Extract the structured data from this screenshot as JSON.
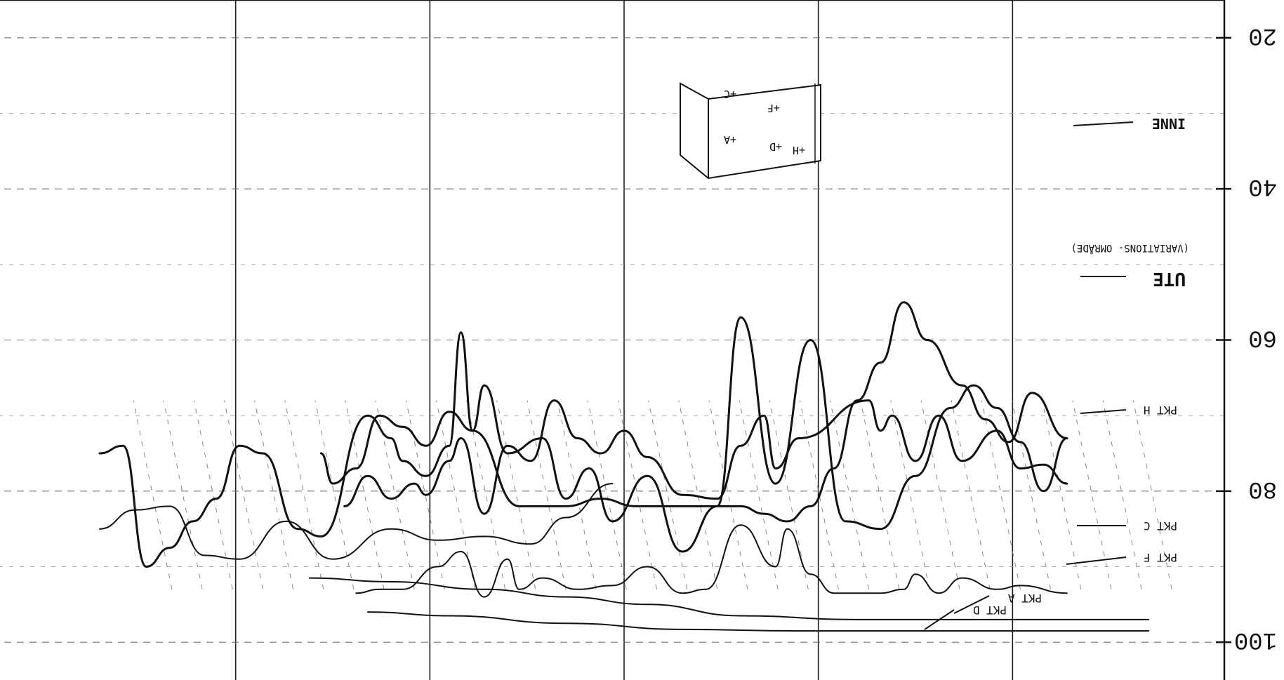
{
  "chart_data": {
    "type": "line",
    "orientation": "rotated-180",
    "y_axis": {
      "ticks": [
        {
          "label": "20",
          "value": 20
        },
        {
          "label": "40",
          "value": 40
        },
        {
          "label": "60",
          "value": 60
        },
        {
          "label": "80",
          "value": 80
        },
        {
          "label": "100",
          "value": 100
        }
      ],
      "ylim": [
        15,
        105
      ]
    },
    "x_range": [
      0,
      100
    ],
    "grid": true,
    "series": [
      {
        "name": "INNE",
        "label": "INNE",
        "style": "thin",
        "points": [
          [
            51,
            79
          ],
          [
            55,
            83.5
          ],
          [
            58,
            87
          ],
          [
            62,
            86
          ],
          [
            66,
            86.5
          ],
          [
            70,
            85
          ],
          [
            75,
            89
          ],
          [
            79,
            84
          ],
          [
            83,
            89
          ],
          [
            86,
            88.5
          ],
          [
            89,
            82
          ],
          [
            92,
            82.5
          ],
          [
            95,
            85
          ]
        ]
      },
      {
        "name": "UTE (VARIATIONS- OMRÅDE)",
        "label": "UTE",
        "note": "(VARIATIONS- OMRÅDE)",
        "style": "bold",
        "points": [
          [
            12,
            73
          ],
          [
            14,
            80
          ],
          [
            16,
            73.5
          ],
          [
            18,
            69
          ],
          [
            20,
            66
          ],
          [
            22,
            69
          ],
          [
            25,
            78
          ],
          [
            28,
            85
          ],
          [
            31,
            84
          ],
          [
            34,
            60
          ],
          [
            37,
            79
          ],
          [
            40,
            57
          ],
          [
            42,
            82
          ],
          [
            45,
            88
          ],
          [
            48,
            78
          ],
          [
            51,
            84
          ],
          [
            53,
            77
          ],
          [
            55,
            81
          ],
          [
            57,
            73
          ],
          [
            60,
            75
          ],
          [
            62,
            66
          ],
          [
            63,
            72
          ],
          [
            64,
            59
          ],
          [
            65,
            74
          ],
          [
            67,
            78
          ],
          [
            69,
            76
          ],
          [
            70,
            73
          ],
          [
            72,
            70
          ],
          [
            76,
            86
          ],
          [
            78,
            85
          ],
          [
            81,
            75
          ],
          [
            83,
            74
          ],
          [
            85,
            81
          ],
          [
            87,
            84
          ],
          [
            89,
            87.5
          ],
          [
            91,
            90
          ],
          [
            93,
            74
          ],
          [
            95,
            75
          ]
        ]
      },
      {
        "name": "PKT H",
        "label": "PKT H",
        "style": "bold",
        "points": [
          [
            12,
            79
          ],
          [
            14,
            76.5
          ],
          [
            16,
            77
          ],
          [
            18,
            72
          ],
          [
            21,
            76
          ],
          [
            23,
            70
          ],
          [
            25,
            76
          ],
          [
            27,
            70
          ],
          [
            28,
            72
          ],
          [
            29,
            68
          ],
          [
            35,
            73
          ],
          [
            37,
            77
          ],
          [
            38,
            70
          ],
          [
            40,
            74
          ],
          [
            42,
            81
          ],
          [
            45,
            80.5
          ],
          [
            48,
            75.5
          ],
          [
            50,
            72
          ],
          [
            52,
            75
          ],
          [
            54,
            73
          ],
          [
            56,
            68
          ],
          [
            58,
            76
          ],
          [
            60,
            74
          ],
          [
            62,
            83
          ],
          [
            64,
            73
          ],
          [
            65,
            76
          ],
          [
            67,
            80.5
          ],
          [
            68,
            79
          ],
          [
            70,
            81
          ],
          [
            72,
            78
          ],
          [
            74,
            82
          ]
        ]
      },
      {
        "name": "PKT C",
        "label": "PKT C",
        "style": "bold",
        "points": [
          [
            12,
            73
          ],
          [
            15,
            67
          ],
          [
            17,
            73.5
          ],
          [
            19,
            70.5
          ],
          [
            21,
            66
          ],
          [
            24,
            60
          ],
          [
            26,
            55
          ],
          [
            28,
            63
          ],
          [
            30,
            68
          ],
          [
            32,
            77
          ],
          [
            34,
            82
          ],
          [
            36,
            84
          ],
          [
            38,
            83
          ],
          [
            40,
            82
          ],
          [
            43,
            82
          ],
          [
            46,
            82
          ],
          [
            49,
            82
          ],
          [
            52,
            81
          ],
          [
            55,
            82
          ],
          [
            57,
            82
          ],
          [
            59,
            82
          ],
          [
            63,
            72
          ],
          [
            65,
            69.5
          ],
          [
            67,
            74
          ],
          [
            69,
            71.5
          ],
          [
            71,
            70
          ],
          [
            73,
            77
          ],
          [
            75,
            79
          ],
          [
            76,
            75
          ]
        ]
      },
      {
        "name": "PKT F",
        "label": "PKT F",
        "style": "thin",
        "points": [
          [
            12,
            93.5
          ],
          [
            16,
            92.5
          ],
          [
            18,
            93
          ],
          [
            21,
            91.5
          ],
          [
            23,
            93.5
          ],
          [
            25,
            91
          ],
          [
            26,
            93
          ],
          [
            28,
            93.5
          ],
          [
            32,
            93.5
          ],
          [
            34,
            91
          ],
          [
            36,
            85
          ],
          [
            37,
            90
          ],
          [
            40,
            84.5
          ],
          [
            43,
            93
          ],
          [
            45,
            93.5
          ],
          [
            48,
            90
          ],
          [
            51,
            92.5
          ],
          [
            54,
            93
          ],
          [
            57,
            91.5
          ],
          [
            59,
            93
          ],
          [
            60,
            89
          ],
          [
            62,
            94
          ],
          [
            64,
            88
          ],
          [
            66,
            90
          ],
          [
            69,
            93
          ],
          [
            71,
            93
          ],
          [
            73,
            93.5
          ]
        ]
      },
      {
        "name": "PKT A",
        "label": "PKT A",
        "style": "thin",
        "points": [
          [
            5,
            97
          ],
          [
            10,
            97
          ],
          [
            20,
            97
          ],
          [
            30,
            97
          ],
          [
            40,
            96.5
          ],
          [
            48,
            95
          ],
          [
            55,
            94
          ],
          [
            62,
            93
          ],
          [
            70,
            92
          ],
          [
            77,
            91.5
          ]
        ]
      },
      {
        "name": "PKT D",
        "label": "PKT D",
        "style": "thin",
        "points": [
          [
            5,
            98.5
          ],
          [
            20,
            98.5
          ],
          [
            35,
            98.5
          ],
          [
            45,
            98.3
          ],
          [
            55,
            97.5
          ],
          [
            65,
            96.5
          ],
          [
            72,
            96
          ]
        ]
      }
    ]
  },
  "inset_block": {
    "labels": [
      "+A",
      "+C",
      "+D",
      "+F",
      "+H"
    ]
  },
  "colors": {
    "ink": "#111111",
    "grid": "#777777",
    "paper": "#ffffff"
  }
}
